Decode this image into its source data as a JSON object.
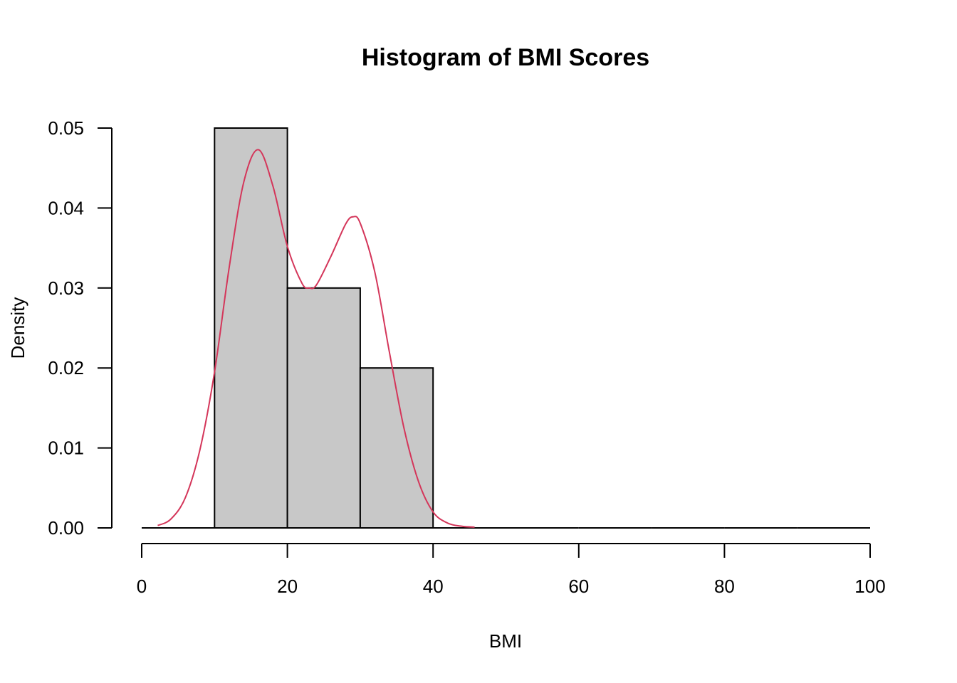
{
  "chart_data": {
    "type": "bar",
    "title": "Histogram of BMI Scores",
    "xlabel": "BMI",
    "ylabel": "Density",
    "xlim": [
      0,
      100
    ],
    "ylim": [
      0,
      0.05
    ],
    "x_ticks": [
      0,
      20,
      40,
      60,
      80,
      100
    ],
    "y_ticks": [
      0.0,
      0.01,
      0.02,
      0.03,
      0.04,
      0.05
    ],
    "y_tick_labels": [
      "0.00",
      "0.01",
      "0.02",
      "0.03",
      "0.04",
      "0.05"
    ],
    "bins": [
      {
        "start": 0,
        "end": 10,
        "density": 0
      },
      {
        "start": 10,
        "end": 20,
        "density": 0.05
      },
      {
        "start": 20,
        "end": 30,
        "density": 0.03
      },
      {
        "start": 30,
        "end": 40,
        "density": 0.02
      },
      {
        "start": 40,
        "end": 50,
        "density": 0
      },
      {
        "start": 50,
        "end": 60,
        "density": 0
      },
      {
        "start": 60,
        "end": 70,
        "density": 0
      },
      {
        "start": 70,
        "end": 80,
        "density": 0
      },
      {
        "start": 80,
        "end": 90,
        "density": 0
      },
      {
        "start": 90,
        "end": 100,
        "density": 0
      }
    ],
    "density_curve": {
      "x": [
        2.2,
        4,
        6,
        8,
        10,
        12,
        14,
        16,
        18,
        20,
        22,
        23,
        24,
        26,
        28,
        29,
        30,
        32,
        34,
        36,
        38,
        40,
        42,
        44,
        45.7
      ],
      "y": [
        0.0003,
        0.0011,
        0.0038,
        0.0098,
        0.0195,
        0.0325,
        0.0432,
        0.0473,
        0.0428,
        0.0352,
        0.0306,
        0.03,
        0.0304,
        0.034,
        0.038,
        0.0389,
        0.0381,
        0.032,
        0.022,
        0.0125,
        0.0058,
        0.002,
        0.0006,
        0.0002,
        0.0001
      ]
    },
    "grid": false,
    "legend": "none",
    "colors": {
      "bar_fill": "#c8c8c8",
      "bar_stroke": "#000000",
      "density_line": "#d4365a"
    }
  }
}
